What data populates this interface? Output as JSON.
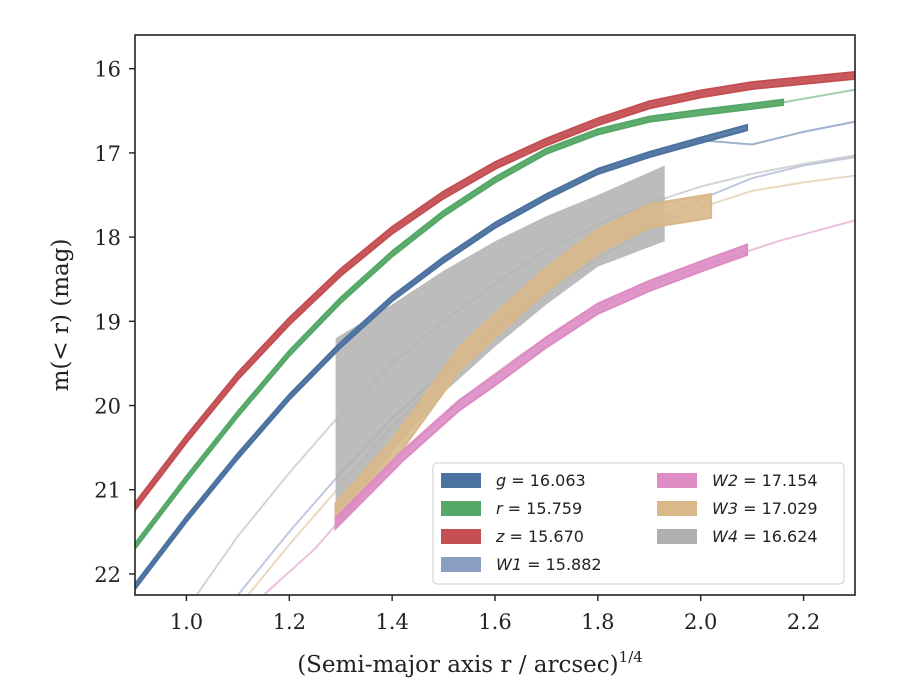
{
  "chart_data": {
    "type": "line",
    "xlabel": "(Semi-major axis r / arcsec)",
    "xlabel_superscript": "1/4",
    "ylabel": "m(< r) (mag)",
    "xlim": [
      0.9,
      2.3
    ],
    "ylim": [
      22.25,
      15.6
    ],
    "y_inverted": true,
    "x_ticks": [
      1.0,
      1.2,
      1.4,
      1.6,
      1.8,
      2.0,
      2.2
    ],
    "x_tick_labels": [
      "1.0",
      "1.2",
      "1.4",
      "1.6",
      "1.8",
      "2.0",
      "2.2"
    ],
    "y_ticks": [
      16,
      17,
      18,
      19,
      20,
      21,
      22
    ],
    "y_tick_labels": [
      "16",
      "17",
      "18",
      "19",
      "20",
      "21",
      "22"
    ],
    "grid": false,
    "legend": {
      "placement": "bottom-right",
      "columns": 2
    },
    "series": [
      {
        "name": "g = 16.063",
        "sym": "g",
        "val": "16.063",
        "color": "#4c72a0",
        "band": [
          [
            0.9,
            22.15
          ],
          [
            1.0,
            21.35
          ],
          [
            1.1,
            20.6
          ],
          [
            1.2,
            19.9
          ],
          [
            1.3,
            19.28
          ],
          [
            1.4,
            18.73
          ],
          [
            1.5,
            18.27
          ],
          [
            1.6,
            17.86
          ],
          [
            1.7,
            17.52
          ],
          [
            1.8,
            17.22
          ],
          [
            1.9,
            17.02
          ],
          [
            2.0,
            16.85
          ],
          [
            2.09,
            16.7
          ]
        ],
        "model": [
          [
            0.9,
            22.15
          ],
          [
            1.0,
            21.35
          ],
          [
            1.1,
            20.6
          ],
          [
            1.2,
            19.9
          ],
          [
            1.3,
            19.28
          ],
          [
            1.4,
            18.73
          ],
          [
            1.5,
            18.27
          ],
          [
            1.6,
            17.86
          ],
          [
            1.7,
            17.52
          ],
          [
            1.8,
            17.22
          ],
          [
            1.9,
            17.02
          ],
          [
            2.0,
            16.85
          ],
          [
            2.1,
            16.9
          ],
          [
            2.2,
            16.75
          ],
          [
            2.3,
            16.63
          ]
        ],
        "band_halfwidth": 0.03
      },
      {
        "name": "r = 15.759",
        "sym": "r",
        "val": "15.759",
        "color": "#55a868",
        "band": [
          [
            0.9,
            21.67
          ],
          [
            1.0,
            20.87
          ],
          [
            1.1,
            20.1
          ],
          [
            1.2,
            19.38
          ],
          [
            1.3,
            18.75
          ],
          [
            1.4,
            18.2
          ],
          [
            1.5,
            17.72
          ],
          [
            1.6,
            17.32
          ],
          [
            1.7,
            16.98
          ],
          [
            1.8,
            16.75
          ],
          [
            1.9,
            16.6
          ],
          [
            2.0,
            16.52
          ],
          [
            2.16,
            16.4
          ]
        ],
        "model": [
          [
            0.9,
            21.67
          ],
          [
            1.0,
            20.87
          ],
          [
            1.1,
            20.1
          ],
          [
            1.2,
            19.38
          ],
          [
            1.3,
            18.75
          ],
          [
            1.4,
            18.2
          ],
          [
            1.5,
            17.72
          ],
          [
            1.6,
            17.32
          ],
          [
            1.7,
            16.98
          ],
          [
            1.8,
            16.75
          ],
          [
            1.9,
            16.6
          ],
          [
            2.0,
            16.52
          ],
          [
            2.16,
            16.4
          ],
          [
            2.3,
            16.25
          ]
        ],
        "band_halfwidth": 0.03
      },
      {
        "name": "z = 15.670",
        "sym": "z",
        "val": "15.670",
        "color": "#c44e52",
        "band": [
          [
            0.9,
            21.2
          ],
          [
            1.0,
            20.4
          ],
          [
            1.1,
            19.65
          ],
          [
            1.2,
            19.0
          ],
          [
            1.3,
            18.42
          ],
          [
            1.4,
            17.92
          ],
          [
            1.5,
            17.5
          ],
          [
            1.6,
            17.15
          ],
          [
            1.7,
            16.87
          ],
          [
            1.8,
            16.63
          ],
          [
            1.9,
            16.43
          ],
          [
            2.0,
            16.3
          ],
          [
            2.1,
            16.2
          ],
          [
            2.3,
            16.08
          ]
        ],
        "model": [
          [
            0.9,
            21.2
          ],
          [
            1.0,
            20.4
          ],
          [
            1.1,
            19.65
          ],
          [
            1.2,
            19.0
          ],
          [
            1.3,
            18.42
          ],
          [
            1.4,
            17.92
          ],
          [
            1.5,
            17.5
          ],
          [
            1.6,
            17.15
          ],
          [
            1.7,
            16.87
          ],
          [
            1.8,
            16.63
          ],
          [
            1.9,
            16.43
          ],
          [
            2.0,
            16.3
          ],
          [
            2.1,
            16.2
          ],
          [
            2.3,
            16.08
          ]
        ],
        "band_halfwidth": 0.04
      },
      {
        "name": "W1 = 15.882",
        "sym": "W1",
        "val": "15.882",
        "color": "#8c9dc4",
        "band": [],
        "model": [
          [
            1.1,
            22.25
          ],
          [
            1.2,
            21.5
          ],
          [
            1.3,
            20.8
          ],
          [
            1.4,
            20.15
          ],
          [
            1.5,
            19.6
          ],
          [
            1.6,
            19.05
          ],
          [
            1.7,
            18.6
          ],
          [
            1.8,
            18.2
          ],
          [
            1.9,
            17.85
          ],
          [
            2.0,
            17.55
          ],
          [
            2.1,
            17.3
          ],
          [
            2.2,
            17.15
          ],
          [
            2.3,
            17.05
          ]
        ],
        "band_halfwidth": 0.0
      },
      {
        "name": "W2 = 17.154",
        "sym": "W2",
        "val": "17.154",
        "color": "#dd8cc4",
        "band": [
          [
            1.29,
            21.4
          ],
          [
            1.42,
            20.6
          ],
          [
            1.53,
            20.0
          ],
          [
            1.6,
            19.7
          ],
          [
            1.7,
            19.25
          ],
          [
            1.8,
            18.85
          ],
          [
            1.9,
            18.58
          ],
          [
            2.0,
            18.35
          ],
          [
            2.09,
            18.15
          ]
        ],
        "model": [
          [
            1.15,
            22.25
          ],
          [
            1.25,
            21.7
          ],
          [
            1.35,
            21.0
          ],
          [
            1.45,
            20.4
          ],
          [
            1.55,
            19.85
          ],
          [
            1.65,
            19.4
          ],
          [
            1.75,
            19.0
          ],
          [
            1.85,
            18.7
          ],
          [
            1.95,
            18.45
          ],
          [
            2.05,
            18.25
          ],
          [
            2.15,
            18.05
          ],
          [
            2.3,
            17.8
          ]
        ],
        "band_halfwidth": 0.06
      },
      {
        "name": "W3 = 17.029",
        "sym": "W3",
        "val": "17.029",
        "color": "#d9b88a",
        "band": [
          [
            1.29,
            21.3
          ],
          [
            1.4,
            20.55
          ],
          [
            1.53,
            19.45
          ],
          [
            1.6,
            19.05
          ],
          [
            1.7,
            18.5
          ],
          [
            1.8,
            18.05
          ],
          [
            1.9,
            17.75
          ],
          [
            2.02,
            17.63
          ]
        ],
        "model": [
          [
            1.12,
            22.25
          ],
          [
            1.2,
            21.65
          ],
          [
            1.3,
            20.95
          ],
          [
            1.4,
            20.25
          ],
          [
            1.5,
            19.65
          ],
          [
            1.6,
            19.1
          ],
          [
            1.7,
            18.65
          ],
          [
            1.8,
            18.25
          ],
          [
            1.9,
            17.9
          ],
          [
            2.0,
            17.65
          ],
          [
            2.1,
            17.45
          ],
          [
            2.2,
            17.35
          ],
          [
            2.3,
            17.27
          ]
        ],
        "band_halfwidth": 0.14
      },
      {
        "name": "W4 = 16.624",
        "sym": "W4",
        "val": "16.624",
        "color": "#b0b0b0",
        "band": [
          [
            1.29,
            20.35
          ],
          [
            1.4,
            19.7
          ],
          [
            1.5,
            19.15
          ],
          [
            1.6,
            18.75
          ],
          [
            1.7,
            18.4
          ],
          [
            1.8,
            18.1
          ],
          [
            1.93,
            17.6
          ]
        ],
        "band_upper": [
          [
            1.29,
            19.2
          ],
          [
            1.4,
            18.8
          ],
          [
            1.5,
            18.4
          ],
          [
            1.6,
            18.05
          ],
          [
            1.7,
            17.75
          ],
          [
            1.8,
            17.5
          ],
          [
            1.93,
            17.15
          ]
        ],
        "band_lower": [
          [
            1.29,
            21.45
          ],
          [
            1.4,
            20.55
          ],
          [
            1.5,
            19.85
          ],
          [
            1.6,
            19.3
          ],
          [
            1.7,
            18.8
          ],
          [
            1.8,
            18.35
          ],
          [
            1.93,
            18.05
          ]
        ],
        "model": [
          [
            1.02,
            22.25
          ],
          [
            1.1,
            21.55
          ],
          [
            1.2,
            20.8
          ],
          [
            1.3,
            20.1
          ],
          [
            1.4,
            19.5
          ],
          [
            1.5,
            19.0
          ],
          [
            1.6,
            18.55
          ],
          [
            1.7,
            18.15
          ],
          [
            1.8,
            17.85
          ],
          [
            1.9,
            17.6
          ],
          [
            2.0,
            17.4
          ],
          [
            2.1,
            17.25
          ],
          [
            2.2,
            17.13
          ],
          [
            2.3,
            17.03
          ]
        ],
        "band_halfwidth": 0.0
      }
    ]
  }
}
